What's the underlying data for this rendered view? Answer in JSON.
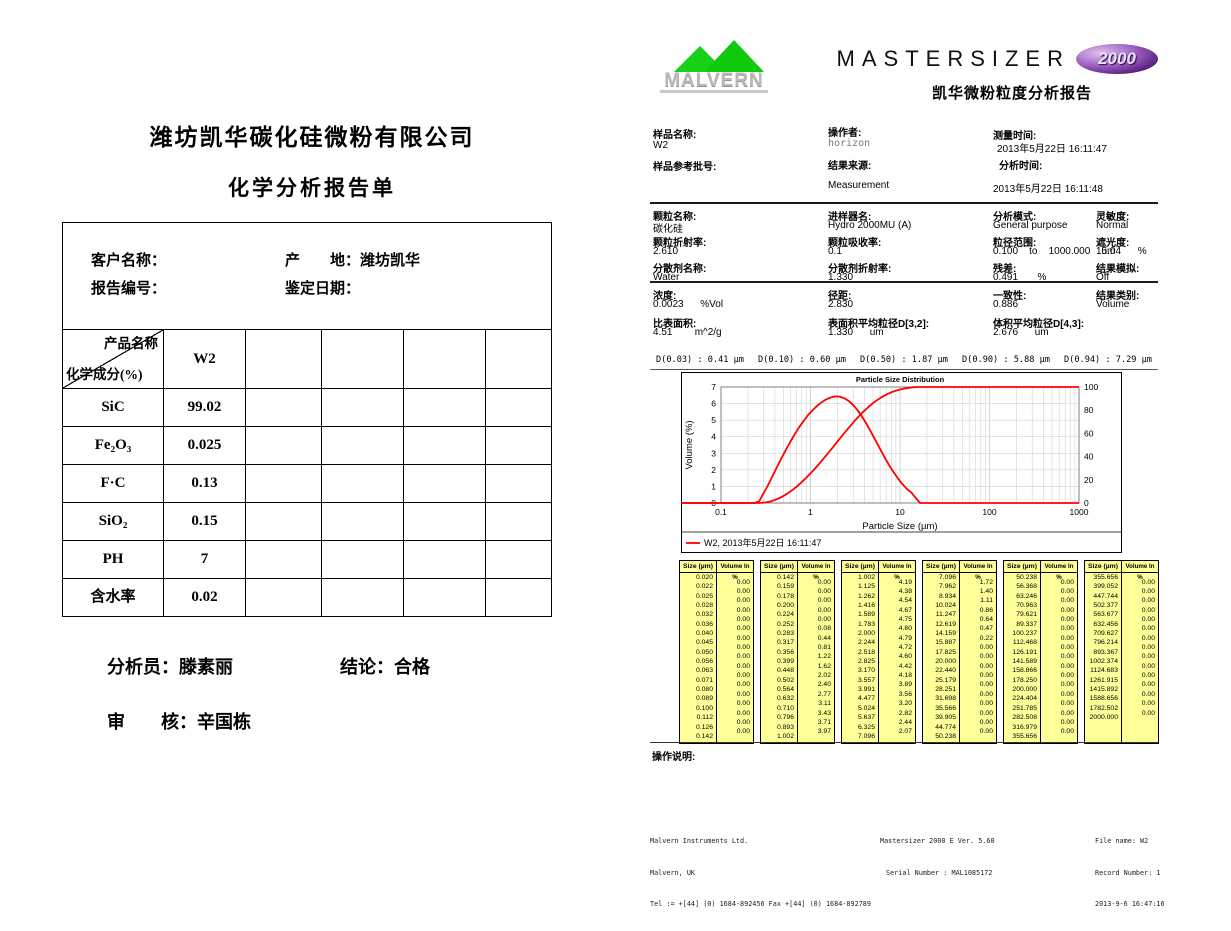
{
  "left_report": {
    "company_title": "潍坊凯华碳化硅微粉有限公司",
    "report_title": "化学分析报告单",
    "head_fields": {
      "customer_label": "客户名称：",
      "origin_label": "产　　地：",
      "origin_value": "潍坊凯华",
      "report_no_label": "报告编号：",
      "date_label": "鉴定日期："
    },
    "matrix": {
      "diag_top": "产品名称",
      "diag_bottom": "化学成分(%)",
      "product": "W2",
      "rows": [
        {
          "name": "SiC",
          "value": "99.02"
        },
        {
          "name": "Fe₂O₃",
          "value": "0.025"
        },
        {
          "name": "F·C",
          "value": "0.13"
        },
        {
          "name": "SiO₂",
          "value": "0.15"
        },
        {
          "name": "PH",
          "value": "7"
        },
        {
          "name": "含水率",
          "value": "0.02"
        }
      ]
    },
    "signatures": {
      "analyst_label": "分析员：",
      "analyst": "滕素丽",
      "conclusion_label": "结论：",
      "conclusion": "合格",
      "reviewer_label": "审　　核：",
      "reviewer": "辛国栋"
    }
  },
  "right_report": {
    "brand": {
      "malvern": "MALVERN",
      "product_word": "MASTERSIZER",
      "badge": "2000",
      "subtitle": "凯华微粉粒度分析报告"
    },
    "sample_info": {
      "sample_name_label": "样品名称:",
      "sample_name": "W2",
      "operator_label": "操作者:",
      "operator": "horizon",
      "measured_label": "测量时间:",
      "measured": "2013年5月22日 16:11:47",
      "batch_label": "样品参考批号:",
      "batch": "",
      "source_label": "结果来源:",
      "source": "Measurement",
      "analysed_label": "分析时间:",
      "analysed": "2013年5月22日 16:11:48"
    },
    "setup": {
      "r1c1_label": "颗粒名称:",
      "r1c1": "碳化硅",
      "r1c2_label": "进样器名:",
      "r1c2": "Hydro 2000MU (A)",
      "r1c3_label": "分析模式:",
      "r1c3": "General purpose",
      "r1c4_label": "灵敏度:",
      "r1c4": "Normal",
      "r2c1_label": "颗粒折射率:",
      "r2c1": "2.610",
      "r2c2_label": "颗粒吸收率:",
      "r2c2": "0.1",
      "r2c3_label": "粒径范围:",
      "r2c3": "0.100    to    1000.000    um",
      "r2c4_label": "遮光度:",
      "r2c4": "15.04      %",
      "r3c1_label": "分散剂名称:",
      "r3c1": "Water",
      "r3c2_label": "分散剂折射率:",
      "r3c2": "1.330",
      "r3c3_label": "残差:",
      "r3c3": "0.491       %",
      "r3c4_label": "结果模拟:",
      "r3c4": "Off"
    },
    "results": {
      "conc_label": "浓度:",
      "conc": "0.0023      %Vol",
      "span_label": "径距:",
      "span": "2.830",
      "unif_label": "一致性:",
      "unif": "0.886",
      "type_label": "结果类别:",
      "type": "Volume",
      "ssa_label": "比表面积:",
      "ssa": "4.51        m^2/g",
      "d32_label": "表面积平均粒径D[3,2]:",
      "d32": "1.330      um",
      "d43_label": "体积平均粒径D[4,3]:",
      "d43": "2.676      um"
    },
    "d_values": [
      "D(0.03) :  0.41 µm",
      "D(0.10) :  0.60 µm",
      "D(0.50) :  1.87 µm",
      "D(0.90) :  5.88 µm",
      "D(0.94) :  7.29 µm"
    ],
    "size_tables": {
      "col_headers": [
        "Size (µm)",
        "Volume In %"
      ]
    },
    "operation_notes_label": "操作说明:",
    "footer": {
      "left": [
        "Malvern Instruments Ltd.",
        "Malvern, UK",
        "Tel := +[44] (0) 1684-892456 Fax +[44] (0) 1684-892789"
      ],
      "center": [
        "Mastersizer 2000 E Ver. 5.60",
        "Serial Number : MAL1085172"
      ],
      "right": [
        "File name: W2",
        "Record Number: 1",
        "2013-9-6 16:47:16"
      ]
    }
  },
  "chart_data": {
    "type": "line",
    "title": "Particle Size Distribution",
    "xlabel": "Particle Size (µm)",
    "ylabel_left": "Volume (%)",
    "x_scale": "log",
    "xlim": [
      0.1,
      1000
    ],
    "ylim_left": [
      0,
      7
    ],
    "yticks_left": [
      0,
      1,
      2,
      3,
      4,
      5,
      6,
      7
    ],
    "ylim_right": [
      0,
      100
    ],
    "yticks_right": [
      0,
      20,
      40,
      60,
      80,
      100
    ],
    "xticks": [
      0.1,
      1,
      10,
      100,
      1000
    ],
    "grid": true,
    "legend": "W2, 2013年5月22日  16:11:47",
    "legend_position": "bottom-left",
    "series_color": "#ff0000",
    "frequency_display_scale": 1.34,
    "size_classes": [
      "0.020",
      "0.022",
      "0.025",
      "0.028",
      "0.032",
      "0.036",
      "0.040",
      "0.045",
      "0.050",
      "0.056",
      "0.063",
      "0.071",
      "0.080",
      "0.089",
      "0.100",
      "0.112",
      "0.126",
      "0.142",
      "0.159",
      "0.178",
      "0.200",
      "0.224",
      "0.252",
      "0.283",
      "0.317",
      "0.356",
      "0.399",
      "0.448",
      "0.502",
      "0.564",
      "0.632",
      "0.710",
      "0.796",
      "0.893",
      "1.002",
      "1.125",
      "1.262",
      "1.416",
      "1.589",
      "1.783",
      "2.000",
      "2.244",
      "2.518",
      "2.825",
      "3.170",
      "3.557",
      "3.991",
      "4.477",
      "5.024",
      "5.637",
      "6.325",
      "7.096",
      "7.962",
      "8.934",
      "10.024",
      "11.247",
      "12.619",
      "14.159",
      "15.887",
      "17.825",
      "20.000",
      "22.440",
      "25.179",
      "28.251",
      "31.698",
      "35.566",
      "39.905",
      "44.774",
      "50.238",
      "56.368",
      "63.246",
      "70.963",
      "79.621",
      "89.337",
      "100.237",
      "112.468",
      "126.191",
      "141.589",
      "158.866",
      "178.250",
      "200.000",
      "224.404",
      "251.785",
      "282.508",
      "316.979",
      "355.656",
      "399.052",
      "447.744",
      "502.377",
      "563.677",
      "632.456",
      "709.627",
      "796.214",
      "893.367",
      "1002.374",
      "1124.683",
      "1261.915",
      "1415.892",
      "1588.656",
      "1782.502",
      "2000.000"
    ],
    "volume_in_percent": [
      "0.00",
      "0.00",
      "0.00",
      "0.00",
      "0.00",
      "0.00",
      "0.00",
      "0.00",
      "0.00",
      "0.00",
      "0.00",
      "0.00",
      "0.00",
      "0.00",
      "0.00",
      "0.00",
      "0.00",
      "0.00",
      "0.00",
      "0.00",
      "0.00",
      "0.00",
      "0.08",
      "0.44",
      "0.81",
      "1.22",
      "1.62",
      "2.02",
      "2.40",
      "2.77",
      "3.11",
      "3.43",
      "3.71",
      "3.97",
      "4.19",
      "4.38",
      "4.54",
      "4.67",
      "4.75",
      "4.80",
      "4.79",
      "4.72",
      "4.60",
      "4.42",
      "4.18",
      "3.89",
      "3.56",
      "3.20",
      "2.82",
      "2.44",
      "2.07",
      "1.72",
      "1.40",
      "1.11",
      "0.86",
      "0.64",
      "0.47",
      "0.22",
      "0.00",
      "0.00",
      "0.00",
      "0.00",
      "0.00",
      "0.00",
      "0.00",
      "0.00",
      "0.00",
      "0.00",
      "0.00",
      "0.00",
      "0.00",
      "0.00",
      "0.00",
      "0.00",
      "0.00",
      "0.00",
      "0.00",
      "0.00",
      "0.00",
      "0.00",
      "0.00",
      "0.00",
      "0.00",
      "0.00",
      "0.00",
      "0.00",
      "0.00",
      "0.00",
      "0.00",
      "0.00",
      "0.00",
      "0.00",
      "0.00",
      "0.00",
      "0.00",
      "0.00",
      "0.00",
      "0.00",
      "0.00",
      "0.00"
    ]
  }
}
